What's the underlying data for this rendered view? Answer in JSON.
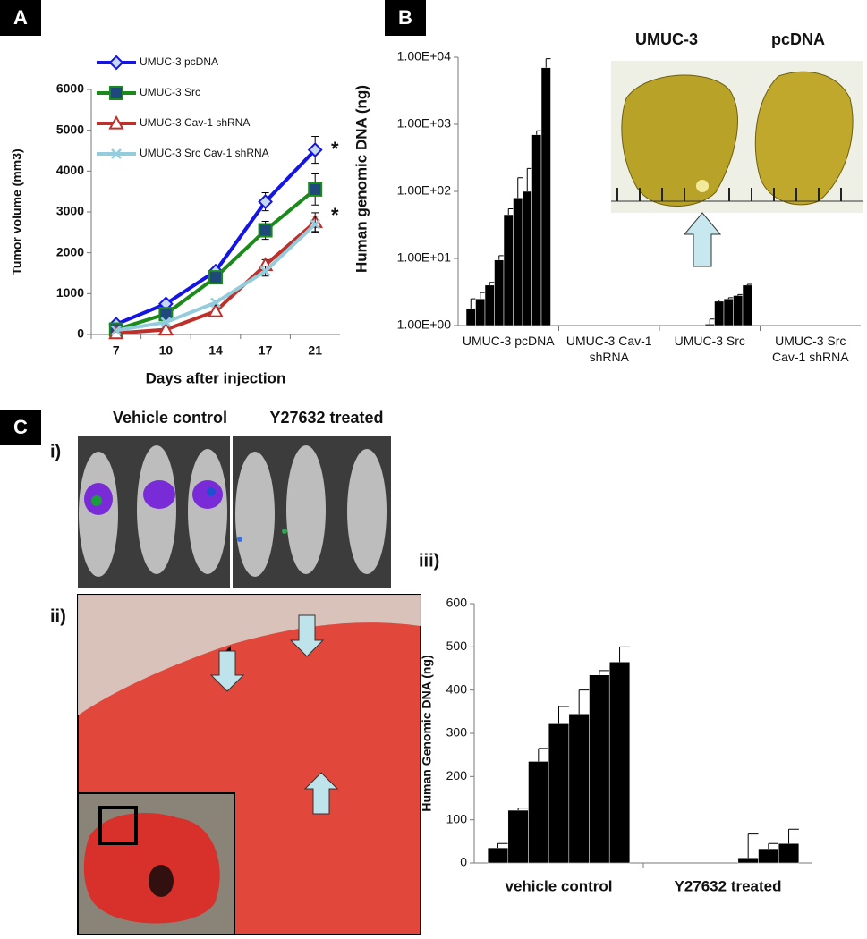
{
  "panel_labels": [
    "A",
    "B",
    "C",
    "i)",
    "ii)",
    "iii)"
  ],
  "photo_labels": {
    "liver_left": "UMUC-3",
    "liver_right": "pcDNA",
    "vehicle": "Vehicle control",
    "treated": "Y27632 treated"
  },
  "chart_data": [
    {
      "type": "line",
      "x_label": "Days after injection",
      "y_label": "Tumor volume (mm3)",
      "categories": [
        "7",
        "10",
        "14",
        "17",
        "21"
      ],
      "ylim": [
        0,
        6000
      ],
      "yticks": [
        0,
        1000,
        2000,
        3000,
        4000,
        5000,
        6000
      ],
      "series": [
        {
          "name": "UMUC-3 pcDNA",
          "color": "#1414e6",
          "marker": "diamond",
          "values": [
            250,
            750,
            1550,
            3250,
            4520
          ],
          "errors": [
            60,
            70,
            90,
            220,
            330
          ]
        },
        {
          "name": "UMUC-3 Src",
          "color": "#1a8a1a",
          "marker": "square",
          "values": [
            120,
            500,
            1400,
            2550,
            3550
          ],
          "errors": [
            50,
            60,
            90,
            220,
            380
          ]
        },
        {
          "name": "UMUC-3 Cav-1 shRNA",
          "color": "#c0302a",
          "marker": "triangle",
          "values": [
            30,
            120,
            570,
            1700,
            2750
          ],
          "errors": [
            30,
            50,
            60,
            130,
            230
          ]
        },
        {
          "name": "UMUC-3 Src Cav-1 shRNA",
          "color": "#93cddd",
          "marker": "x",
          "values": [
            100,
            300,
            780,
            1550,
            2700
          ],
          "errors": [
            40,
            50,
            60,
            120,
            200
          ]
        }
      ],
      "annotations": [
        "*",
        "*"
      ]
    },
    {
      "type": "bar",
      "y_label": "Human genomic DNA (ng)",
      "log_scale": true,
      "color": "#000000",
      "categories": [
        "UMUC-3 pcDNA",
        "UMUC-3 Cav-1 shRNA",
        "UMUC-3 Src",
        "UMUC-3 Src Cav-1 shRNA"
      ],
      "ylim": [
        1,
        10000
      ],
      "yticks": [
        {
          "value": 1,
          "label": "1.00E+00"
        },
        {
          "value": 10,
          "label": "1.00E+01"
        },
        {
          "value": 100,
          "label": "1.00E+02"
        },
        {
          "value": 1000,
          "label": "1.00E+03"
        },
        {
          "value": 10000,
          "label": "1.00E+04"
        }
      ],
      "values": [
        [
          1.8,
          2.5,
          4,
          9.5,
          45,
          80,
          100,
          700,
          7000
        ],
        [],
        [
          1.05,
          2.3,
          2.5,
          2.8,
          4
        ],
        []
      ],
      "errors": [
        [
          0.7,
          0.6,
          0.4,
          1.5,
          10,
          80,
          120,
          100,
          2500
        ],
        [],
        [
          0.2,
          0.1,
          0.1,
          0.1,
          0.1
        ],
        []
      ]
    },
    {
      "type": "bar",
      "y_label": "Human Genomic DNA (ng)",
      "log_scale": false,
      "color": "#000000",
      "categories": [
        "vehicle control",
        "Y27632 treated"
      ],
      "ylim": [
        0,
        600
      ],
      "yticks": [
        0,
        100,
        200,
        300,
        400,
        500,
        600
      ],
      "values": [
        [
          35,
          122,
          235,
          322,
          345,
          435,
          465
        ],
        [
          12,
          33,
          45
        ]
      ],
      "errors": [
        [
          10,
          5,
          30,
          40,
          55,
          10,
          35
        ],
        [
          55,
          12,
          33
        ]
      ]
    }
  ]
}
